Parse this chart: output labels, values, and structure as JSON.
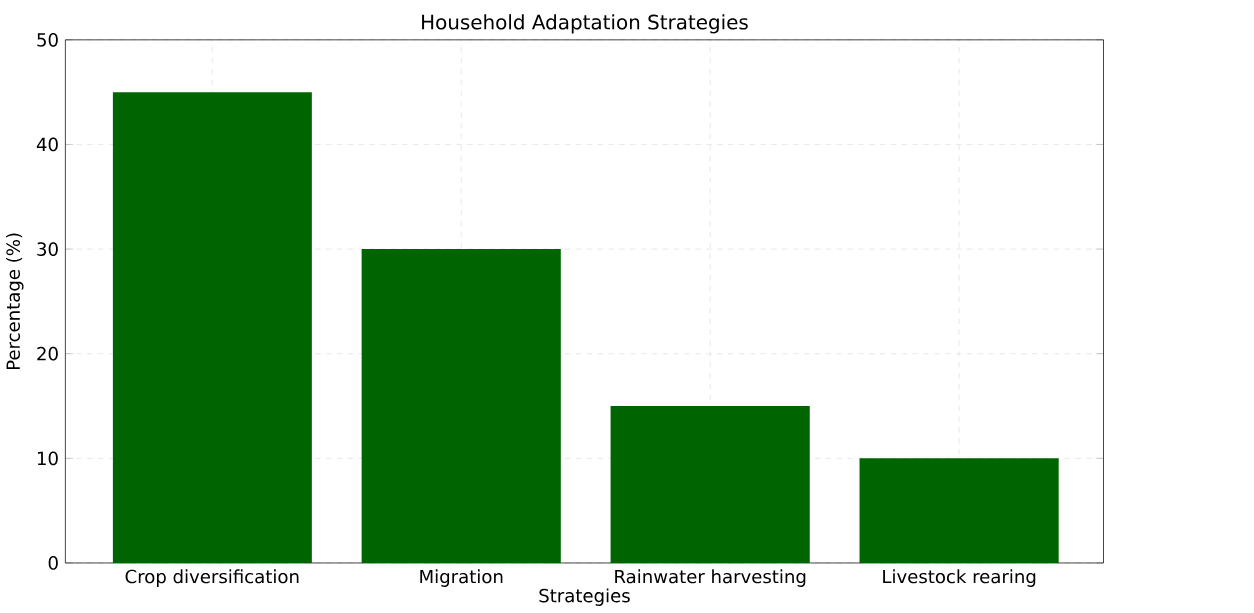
{
  "chart_data": {
    "type": "bar",
    "title": "Household Adaptation Strategies",
    "xlabel": "Strategies",
    "ylabel": "Percentage (%)",
    "categories": [
      "Crop diversification",
      "Migration",
      "Rainwater harvesting",
      "Livestock rearing"
    ],
    "values": [
      45,
      30,
      15,
      10
    ],
    "color": "#006400",
    "ylim": [
      0,
      50
    ],
    "yticks": [
      0,
      10,
      20,
      30,
      40,
      50
    ],
    "grid": true
  }
}
